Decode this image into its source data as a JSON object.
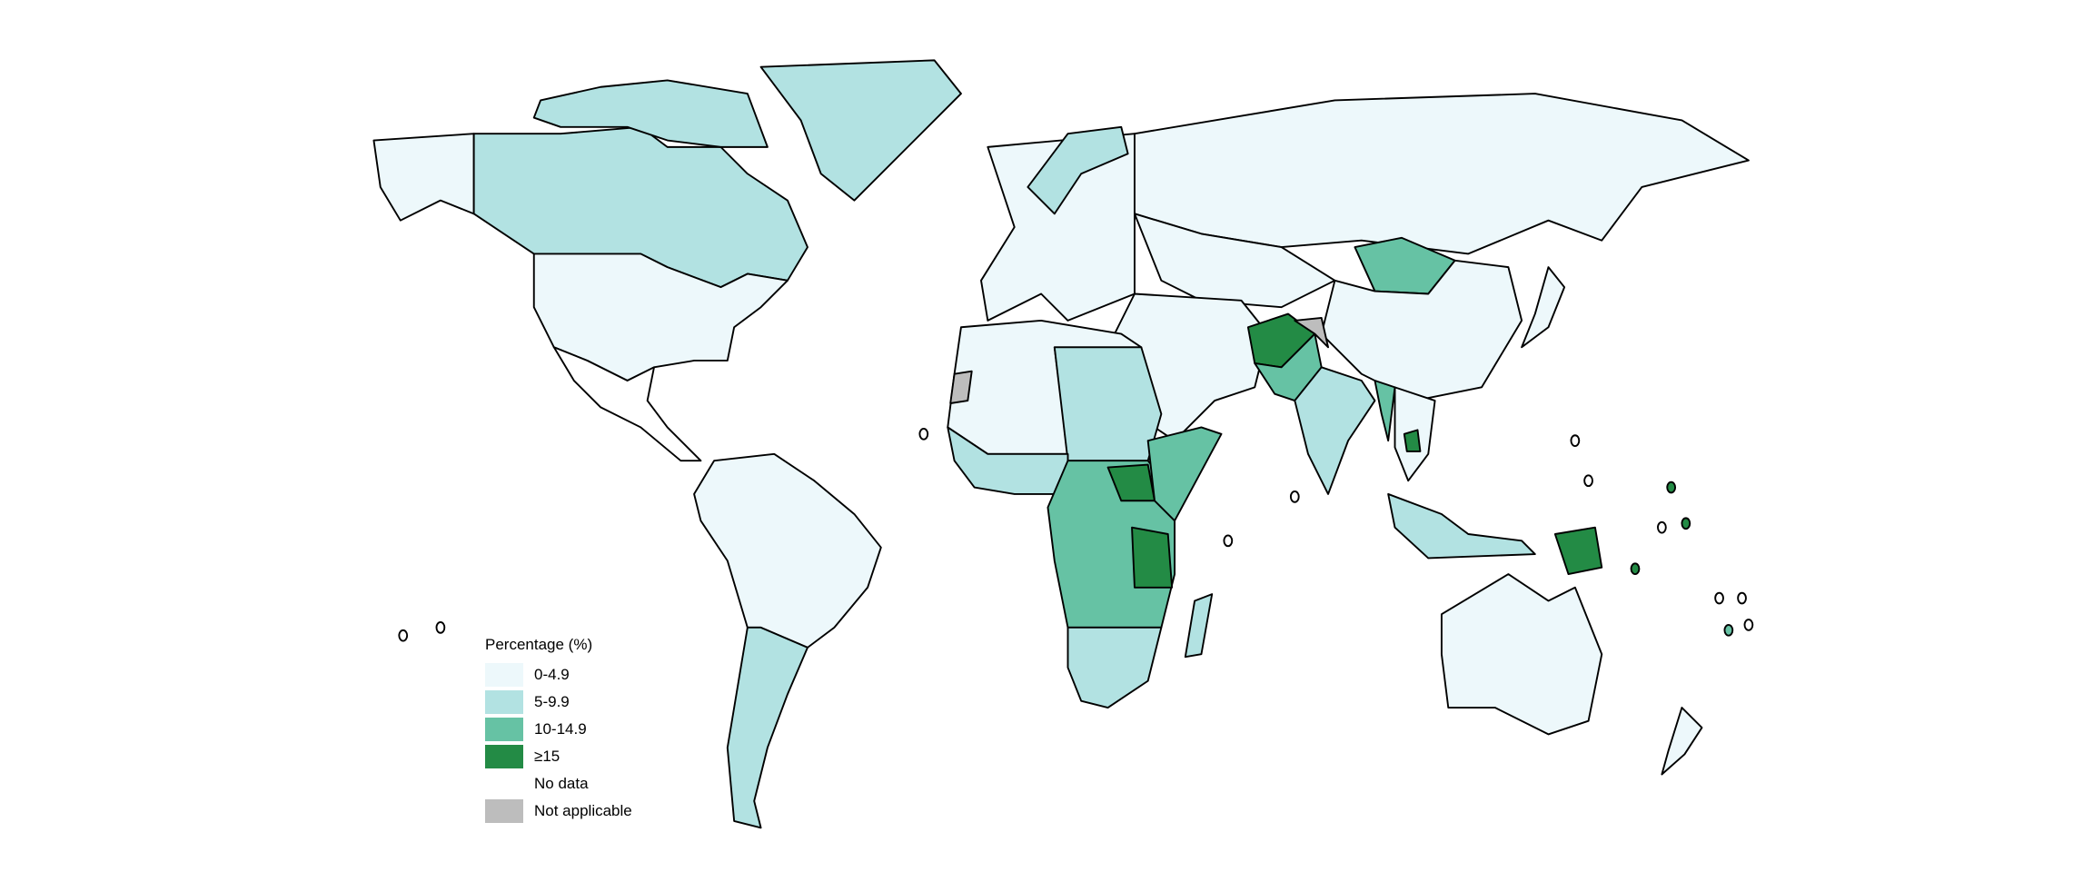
{
  "legend": {
    "title": "Percentage (%)",
    "items": [
      {
        "label": "0-4.9",
        "color": "#edf8fb"
      },
      {
        "label": "5-9.9",
        "color": "#b2e2e2"
      },
      {
        "label": "10-14.9",
        "color": "#66c2a4"
      },
      {
        "label": "≥15",
        "color": "#238b45"
      },
      {
        "label": "No data",
        "color": "#ffffff"
      },
      {
        "label": "Not applicable",
        "color": "#bdbdbd"
      }
    ]
  },
  "map_data": {
    "Alaska (USA)": "0-4.9",
    "Canada": "5-9.9",
    "Arctic islands": "5-9.9",
    "Greenland": "5-9.9",
    "USA": "0-4.9",
    "Mexico": "No data",
    "South America north": "0-4.9",
    "Argentina/Chile": "5-9.9",
    "Europe": "0-4.9",
    "Scandinavia": "5-9.9",
    "Russia": "0-4.9",
    "Kazakhstan": "0-4.9",
    "Mongolia": "10-14.9",
    "China": "0-4.9",
    "Middle East": "0-4.9",
    "Afghanistan": "≥15",
    "Pakistan": "10-14.9",
    "Kashmir": "Not applicable",
    "India": "5-9.9",
    "Myanmar": "10-14.9",
    "Southeast Asia": "0-4.9",
    "Cambodia": "≥15",
    "Indonesia": "5-9.9",
    "Papua New Guinea": "≥15",
    "Australia": "0-4.9",
    "New Zealand": "0-4.9",
    "Japan": "0-4.9",
    "North Africa": "0-4.9",
    "Western Sahara": "Not applicable",
    "Sudan/Egypt": "5-9.9",
    "West Africa": "5-9.9",
    "Central Africa": "10-14.9",
    "South Sudan": "≥15",
    "Tanzania": "≥15",
    "Horn of Africa": "10-14.9",
    "Southern Africa": "5-9.9",
    "Madagascar": "5-9.9"
  }
}
